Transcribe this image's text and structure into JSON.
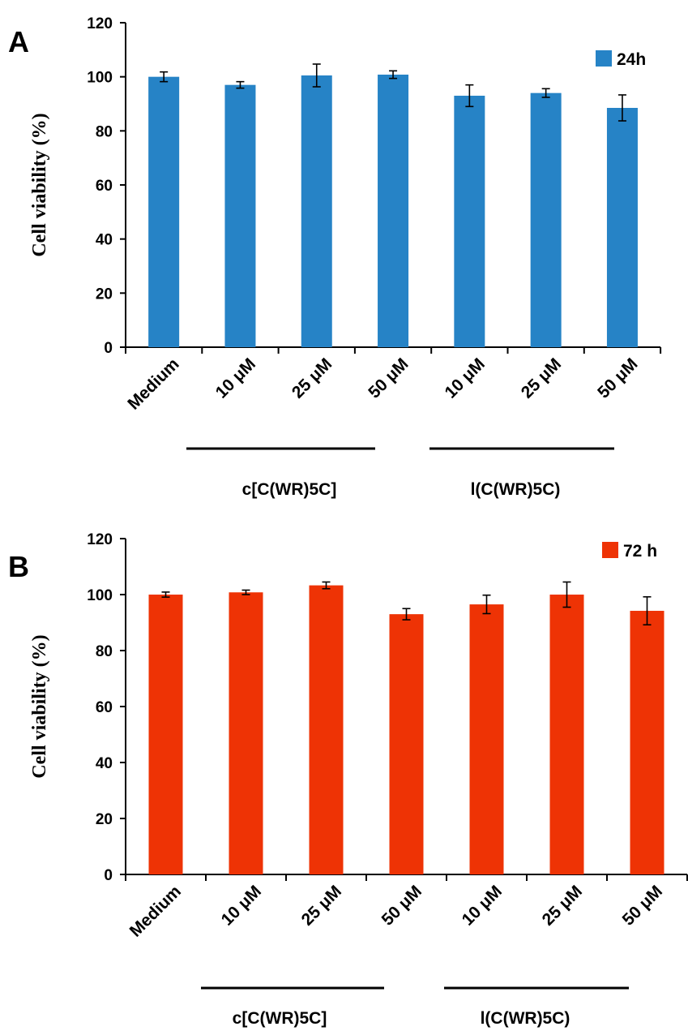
{
  "chart_data": [
    {
      "type": "bar",
      "panel_label": "A",
      "categories": [
        "Medium",
        "10 μM",
        "25 μM",
        "50 μM",
        "10 μM",
        "25 μM",
        "50 μM"
      ],
      "series": [
        {
          "name": "24h",
          "color": "#2683c6",
          "values": [
            100,
            97,
            100.5,
            100.8,
            93,
            94,
            88.5
          ],
          "errors": [
            1.8,
            1.2,
            4.2,
            1.4,
            4.0,
            1.6,
            4.8
          ]
        }
      ],
      "groups": [
        {
          "label": "c[C(WR)5C]",
          "categories": [
            1,
            3
          ]
        },
        {
          "label": "l(C(WR)5C)",
          "categories": [
            4,
            6
          ]
        }
      ],
      "ylabel": "Cell viability  (%)",
      "ylim": [
        0,
        120
      ],
      "yticks": [
        "0",
        "20",
        "40",
        "60",
        "80",
        "100",
        "120"
      ],
      "legend_position": "top-right",
      "grid": false
    },
    {
      "type": "bar",
      "panel_label": "B",
      "categories": [
        "Medium",
        "10 μM",
        "25 μM",
        "50 μM",
        "10 μM",
        "25 μM",
        "50 μM"
      ],
      "series": [
        {
          "name": "72 h",
          "color": "#ee3305",
          "values": [
            100,
            100.8,
            103.3,
            93,
            96.5,
            100,
            94.2
          ],
          "errors": [
            0.9,
            0.8,
            1.2,
            2.0,
            3.3,
            4.5,
            5.0
          ]
        }
      ],
      "groups": [
        {
          "label": "c[C(WR)5C]",
          "categories": [
            1,
            3
          ]
        },
        {
          "label": "l(C(WR)5C)",
          "categories": [
            4,
            6
          ]
        }
      ],
      "ylabel": "Cell viability  (%)",
      "ylim": [
        0,
        120
      ],
      "yticks": [
        "0",
        "20",
        "40",
        "60",
        "80",
        "100",
        "120"
      ],
      "legend_position": "top-right",
      "grid": false
    }
  ]
}
